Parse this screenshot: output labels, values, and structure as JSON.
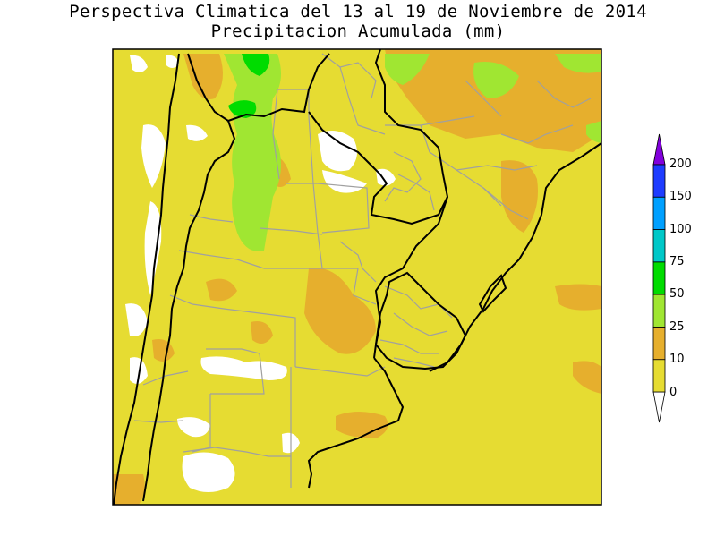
{
  "title": {
    "line1": "Perspectiva Climatica del 13 al 19 de Noviembre de 2014",
    "line2": "Precipitacion Acumulada (mm)"
  },
  "legend": {
    "bins": [
      {
        "label": "0",
        "color": "#e6dc32"
      },
      {
        "label": "10",
        "color": "#e6af2d"
      },
      {
        "label": "25",
        "color": "#a0e632"
      },
      {
        "label": "50",
        "color": "#00dc00"
      },
      {
        "label": "75",
        "color": "#00c8c8"
      },
      {
        "label": "100",
        "color": "#00a0ff"
      },
      {
        "label": "150",
        "color": "#1e3cff"
      },
      {
        "label": "200",
        "color": "#8200dc"
      }
    ],
    "below_color": "#ffffff",
    "above_color": "#8200dc"
  },
  "map": {
    "background_color": "#e6dc32",
    "no_data_color": "#ffffff",
    "border_color": "#000000",
    "province_color": "#a0a0a0"
  }
}
